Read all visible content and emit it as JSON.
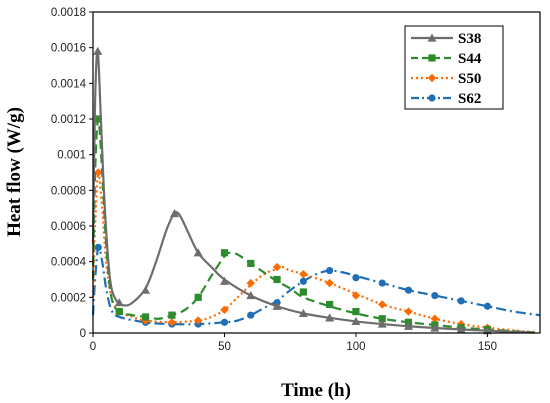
{
  "chart_data": {
    "type": "line",
    "title": "",
    "xlabel": "Time (h)",
    "ylabel": "Heat flow (W/g)",
    "xlim": [
      0,
      170
    ],
    "ylim": [
      0,
      0.0018
    ],
    "xticks": [
      "0",
      "50",
      "100",
      "150"
    ],
    "yticks": [
      "0",
      "0.0002",
      "0.0004",
      "0.0006",
      "0.0008",
      "0.001",
      "0.0012",
      "0.0014",
      "0.0016",
      "0.0018"
    ],
    "grid": false,
    "legend_position": "top-right",
    "series": [
      {
        "name": "S38",
        "color": "#6d6d6d",
        "line_style": "solid",
        "marker": "triangle",
        "curve": [
          [
            0,
            0.0005
          ],
          [
            0.8,
            0.0013
          ],
          [
            1.8,
            0.00158
          ],
          [
            3,
            0.0012
          ],
          [
            4.5,
            0.0007
          ],
          [
            6.5,
            0.0003
          ],
          [
            9,
            0.00018
          ],
          [
            12,
            0.000155
          ],
          [
            15,
            0.00017
          ],
          [
            20,
            0.00025
          ],
          [
            24,
            0.0004
          ],
          [
            28,
            0.00058
          ],
          [
            31,
            0.00067
          ],
          [
            33,
            0.00066
          ],
          [
            36,
            0.00057
          ],
          [
            40,
            0.00045
          ],
          [
            45,
            0.00037
          ],
          [
            50,
            0.0003
          ],
          [
            60,
            0.00021
          ],
          [
            70,
            0.00015
          ],
          [
            80,
            0.00011
          ],
          [
            90,
            8.5e-05
          ],
          [
            100,
            6.5e-05
          ],
          [
            110,
            5e-05
          ],
          [
            120,
            3.8e-05
          ],
          [
            130,
            2.8e-05
          ],
          [
            140,
            2e-05
          ],
          [
            150,
            1.3e-05
          ],
          [
            160,
            6e-06
          ],
          [
            168,
            2e-06
          ]
        ],
        "markers": [
          [
            1.8,
            0.00158
          ],
          [
            10,
            0.00017
          ],
          [
            20,
            0.00024
          ],
          [
            31,
            0.00067
          ],
          [
            40,
            0.00045
          ],
          [
            50,
            0.00029
          ],
          [
            60,
            0.00021
          ],
          [
            70,
            0.00015
          ],
          [
            80,
            0.00011
          ],
          [
            90,
            8.5e-05
          ],
          [
            100,
            6.5e-05
          ],
          [
            110,
            5e-05
          ],
          [
            120,
            3.8e-05
          ],
          [
            130,
            2.8e-05
          ],
          [
            140,
            2e-05
          ],
          [
            150,
            1.3e-05
          ]
        ]
      },
      {
        "name": "S44",
        "color": "#2e8b2e",
        "line_style": "dashed",
        "marker": "square",
        "curve": [
          [
            0,
            0.0003
          ],
          [
            0.8,
            0.0009
          ],
          [
            2,
            0.0012
          ],
          [
            3.5,
            0.0009
          ],
          [
            5,
            0.0005
          ],
          [
            7,
            0.0002
          ],
          [
            10,
            0.00012
          ],
          [
            15,
            0.0001
          ],
          [
            20,
            9e-05
          ],
          [
            25,
            8e-05
          ],
          [
            30,
            0.0001
          ],
          [
            35,
            0.00013
          ],
          [
            40,
            0.0002
          ],
          [
            45,
            0.00032
          ],
          [
            50,
            0.00043
          ],
          [
            52,
            0.00045
          ],
          [
            55,
            0.00044
          ],
          [
            60,
            0.00039
          ],
          [
            65,
            0.00034
          ],
          [
            70,
            0.00029
          ],
          [
            75,
            0.00025
          ],
          [
            80,
            0.0002
          ],
          [
            90,
            0.00015
          ],
          [
            100,
            0.00011
          ],
          [
            110,
            8e-05
          ],
          [
            120,
            6e-05
          ],
          [
            130,
            4.5e-05
          ],
          [
            140,
            3e-05
          ],
          [
            150,
            2e-05
          ],
          [
            160,
            1e-05
          ],
          [
            168,
            3e-06
          ]
        ],
        "markers": [
          [
            2,
            0.0012
          ],
          [
            10,
            0.00012
          ],
          [
            20,
            9e-05
          ],
          [
            30,
            0.0001
          ],
          [
            40,
            0.0002
          ],
          [
            50,
            0.00045
          ],
          [
            60,
            0.00039
          ],
          [
            70,
            0.0003
          ],
          [
            80,
            0.00023
          ],
          [
            90,
            0.00016
          ],
          [
            100,
            0.00012
          ],
          [
            110,
            8e-05
          ],
          [
            120,
            6e-05
          ],
          [
            130,
            4.5e-05
          ],
          [
            140,
            3e-05
          ],
          [
            150,
            2e-05
          ]
        ]
      },
      {
        "name": "S50",
        "color": "#ff6a00",
        "line_style": "dotted",
        "marker": "diamond",
        "curve": [
          [
            0,
            0.0002
          ],
          [
            0.8,
            0.0006
          ],
          [
            2,
            0.0009
          ],
          [
            3.5,
            0.0007
          ],
          [
            5,
            0.0004
          ],
          [
            7,
            0.0002
          ],
          [
            10,
            0.00012
          ],
          [
            15,
            9e-05
          ],
          [
            20,
            7e-05
          ],
          [
            30,
            6e-05
          ],
          [
            40,
            7e-05
          ],
          [
            45,
            9e-05
          ],
          [
            50,
            0.00013
          ],
          [
            55,
            0.0002
          ],
          [
            60,
            0.00027
          ],
          [
            65,
            0.00033
          ],
          [
            70,
            0.00036
          ],
          [
            72,
            0.00037
          ],
          [
            75,
            0.00035
          ],
          [
            80,
            0.00033
          ],
          [
            90,
            0.00028
          ],
          [
            100,
            0.00022
          ],
          [
            110,
            0.00016
          ],
          [
            120,
            0.00012
          ],
          [
            130,
            8e-05
          ],
          [
            140,
            5e-05
          ],
          [
            150,
            3e-05
          ],
          [
            160,
            1.5e-05
          ],
          [
            168,
            5e-06
          ]
        ],
        "markers": [
          [
            2,
            0.0009
          ],
          [
            10,
            0.00012
          ],
          [
            20,
            7e-05
          ],
          [
            30,
            6e-05
          ],
          [
            40,
            7e-05
          ],
          [
            50,
            0.00013
          ],
          [
            60,
            0.00028
          ],
          [
            70,
            0.00037
          ],
          [
            80,
            0.00033
          ],
          [
            90,
            0.00028
          ],
          [
            100,
            0.00021
          ],
          [
            110,
            0.00016
          ],
          [
            120,
            0.00012
          ],
          [
            130,
            8e-05
          ],
          [
            140,
            5e-05
          ],
          [
            150,
            3e-05
          ]
        ]
      },
      {
        "name": "S62",
        "color": "#1f6fb5",
        "line_style": "dash-dot",
        "marker": "circle",
        "curve": [
          [
            0,
            0.0001
          ],
          [
            0.8,
            0.0003
          ],
          [
            2,
            0.00048
          ],
          [
            3.5,
            0.0004
          ],
          [
            5,
            0.00025
          ],
          [
            7,
            0.00013
          ],
          [
            10,
            9e-05
          ],
          [
            20,
            6e-05
          ],
          [
            30,
            5e-05
          ],
          [
            40,
            5e-05
          ],
          [
            50,
            6e-05
          ],
          [
            55,
            7e-05
          ],
          [
            60,
            0.0001
          ],
          [
            65,
            0.00014
          ],
          [
            70,
            0.00018
          ],
          [
            75,
            0.00024
          ],
          [
            80,
            0.00029
          ],
          [
            85,
            0.00033
          ],
          [
            90,
            0.00035
          ],
          [
            95,
            0.00034
          ],
          [
            100,
            0.00032
          ],
          [
            110,
            0.00028
          ],
          [
            120,
            0.00024
          ],
          [
            130,
            0.00021
          ],
          [
            140,
            0.00018
          ],
          [
            150,
            0.00015
          ],
          [
            160,
            0.00012
          ],
          [
            170,
            0.0001
          ]
        ],
        "markers": [
          [
            2,
            0.00048
          ],
          [
            20,
            6e-05
          ],
          [
            30,
            5e-05
          ],
          [
            40,
            5e-05
          ],
          [
            50,
            6e-05
          ],
          [
            60,
            0.0001
          ],
          [
            70,
            0.00017
          ],
          [
            80,
            0.00029
          ],
          [
            90,
            0.00035
          ],
          [
            100,
            0.00031
          ],
          [
            110,
            0.00028
          ],
          [
            120,
            0.00024
          ],
          [
            130,
            0.00021
          ],
          [
            140,
            0.00018
          ],
          [
            150,
            0.00015
          ]
        ]
      }
    ]
  }
}
